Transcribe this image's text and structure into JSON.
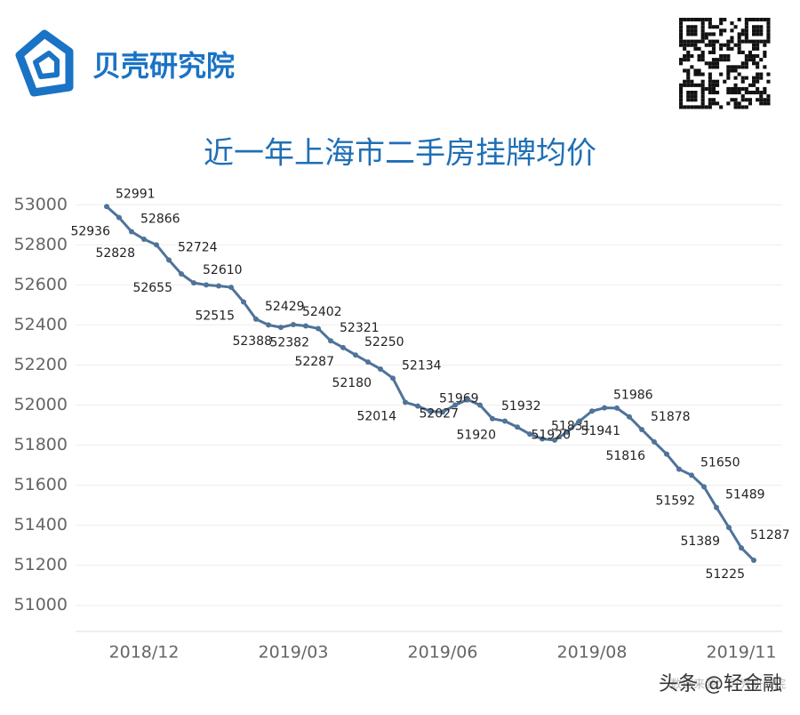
{
  "brand": "贝壳研究院",
  "watermark": "头条 @轻金融",
  "source": "数据来源：贝壳研究院",
  "chart_data": {
    "type": "line",
    "title": "近一年上海市二手房挂牌均价",
    "categories": [
      null,
      null,
      null,
      "2018/12",
      null,
      null,
      null,
      null,
      null,
      null,
      null,
      null,
      null,
      null,
      null,
      "2019/03",
      null,
      null,
      null,
      null,
      null,
      null,
      null,
      null,
      null,
      null,
      null,
      "2019/06",
      null,
      null,
      null,
      null,
      null,
      null,
      null,
      null,
      null,
      null,
      null,
      "2019/08",
      null,
      null,
      null,
      null,
      null,
      null,
      null,
      null,
      null,
      null,
      null,
      "2019/11",
      null
    ],
    "values": [
      52991,
      52936,
      52866,
      52828,
      52800,
      52724,
      52655,
      52610,
      52600,
      52595,
      52588,
      52515,
      52429,
      52400,
      52388,
      52402,
      52395,
      52382,
      52321,
      52287,
      52250,
      52215,
      52180,
      52134,
      52014,
      51995,
      51969,
      51965,
      52000,
      52027,
      52000,
      51932,
      51920,
      51890,
      51855,
      51831,
      51825,
      51865,
      51920,
      51970,
      51986,
      51985,
      51941,
      51878,
      51816,
      51755,
      51680,
      51650,
      51592,
      51489,
      51389,
      51287,
      51225
    ],
    "value_labels": [
      "52991",
      "52936",
      "52866",
      "52828",
      null,
      "52724",
      "52655",
      "52610",
      null,
      null,
      null,
      "52515",
      "52429",
      null,
      "52388",
      "52402",
      null,
      "52382",
      "52321",
      "52287",
      "52250",
      null,
      "52180",
      "52134",
      "52014",
      null,
      "51969",
      null,
      null,
      "52027",
      null,
      "51932",
      "51920",
      null,
      null,
      "51831",
      null,
      null,
      "51920",
      null,
      "51986",
      null,
      "51941",
      "51878",
      "51816",
      null,
      null,
      "51650",
      "51592",
      "51489",
      "51389",
      "51287",
      "51225"
    ],
    "color": "#4f7399",
    "ylim": [
      50870,
      53090
    ],
    "yticks": [
      51000,
      51200,
      51400,
      51600,
      51800,
      52000,
      52200,
      52400,
      52600,
      52800,
      53000
    ],
    "grid": true
  }
}
